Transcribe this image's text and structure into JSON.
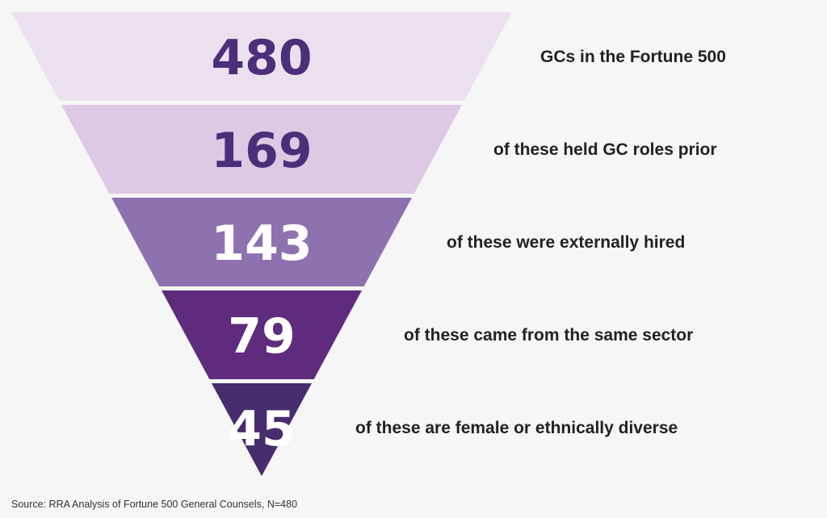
{
  "chart_data": {
    "type": "funnel",
    "stages": [
      {
        "value": 480,
        "value_text": "480",
        "label": "GCs in the Fortune 500",
        "fill": "#ebe1ee",
        "text_color": "#4b2f7a"
      },
      {
        "value": 169,
        "value_text": "169",
        "label": "of these held GC roles prior",
        "fill": "#ddc9e3",
        "text_color": "#4b2f7a"
      },
      {
        "value": 143,
        "value_text": "143",
        "label": "of these were externally hired",
        "fill": "#8e72b0",
        "text_color": "#ffffff"
      },
      {
        "value": 79,
        "value_text": "79",
        "label": "of these came from the same sector",
        "fill": "#5f2b7c",
        "text_color": "#ffffff"
      },
      {
        "value": 45,
        "value_text": "45",
        "label": "of these are female or ethnically diverse",
        "fill": "#472c6e",
        "text_color": "#ffffff"
      }
    ],
    "source": "Source: RRA Analysis of Fortune 500 General Counsels, N=480"
  }
}
